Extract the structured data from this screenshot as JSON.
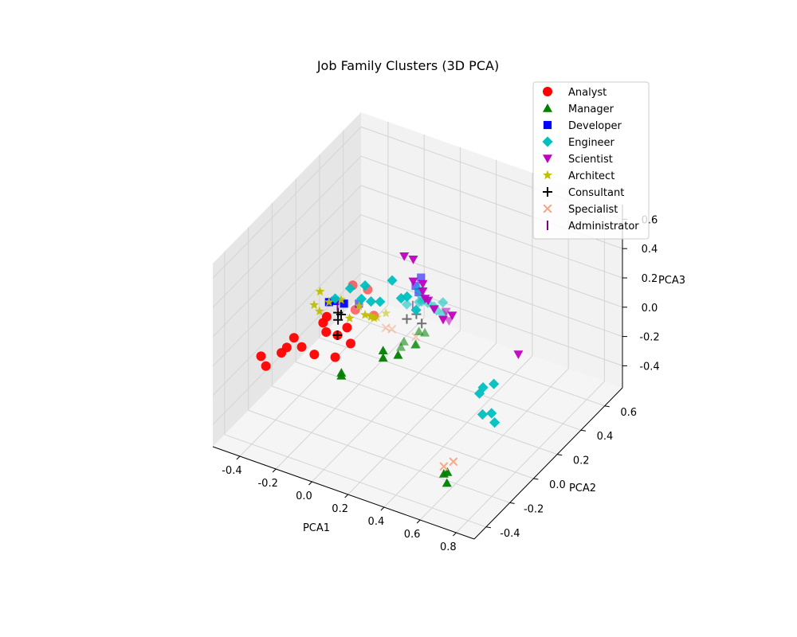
{
  "chart_data": {
    "type": "scatter3d",
    "title": "Job Family Clusters (3D PCA)",
    "xlabel": "PCA1",
    "ylabel": "PCA2",
    "zlabel": "PCA3",
    "xlim": [
      -0.55,
      0.9
    ],
    "ylim": [
      -0.5,
      0.75
    ],
    "zlim": [
      -0.55,
      0.7
    ],
    "xticks": [
      "-0.4",
      "-0.2",
      "0.0",
      "0.2",
      "0.4",
      "0.6",
      "0.8"
    ],
    "yticks": [
      "-0.4",
      "-0.2",
      "0.0",
      "0.2",
      "0.4",
      "0.6"
    ],
    "zticks": [
      "-0.4",
      "-0.2",
      "0.0",
      "0.2",
      "0.4",
      "0.6"
    ],
    "grid": true,
    "legend_position": "top-right",
    "series": [
      {
        "name": "Analyst",
        "color": "#ff0000",
        "marker": "circle",
        "points": [
          [
            -0.48,
            -0.2,
            -0.15
          ],
          [
            -0.42,
            -0.25,
            -0.15
          ],
          [
            -0.38,
            -0.18,
            -0.1
          ],
          [
            -0.35,
            -0.18,
            -0.05
          ],
          [
            -0.33,
            -0.15,
            0.0
          ],
          [
            -0.32,
            -0.1,
            -0.1
          ],
          [
            -0.3,
            0.05,
            -0.05
          ],
          [
            -0.28,
            0.05,
            0.0
          ],
          [
            -0.25,
            0.0,
            -0.05
          ],
          [
            -0.22,
            0.05,
            -0.1
          ],
          [
            -0.2,
            0.1,
            -0.08
          ],
          [
            -0.22,
            0.2,
            -0.05
          ],
          [
            -0.15,
            0.25,
            -0.1
          ],
          [
            -0.25,
            -0.1,
            -0.12
          ],
          [
            -0.2,
            0.0,
            -0.2
          ],
          [
            -0.18,
            0.1,
            -0.18
          ],
          [
            -0.3,
            0.3,
            0.0
          ],
          [
            -0.25,
            0.35,
            -0.05
          ]
        ]
      },
      {
        "name": "Manager",
        "color": "#008000",
        "marker": "triangle-up",
        "points": [
          [
            -0.1,
            -0.1,
            -0.2
          ],
          [
            -0.1,
            -0.1,
            -0.18
          ],
          [
            0.0,
            0.1,
            -0.2
          ],
          [
            0.0,
            0.1,
            -0.15
          ],
          [
            0.05,
            0.15,
            -0.2
          ],
          [
            0.05,
            0.2,
            -0.15
          ],
          [
            0.08,
            0.25,
            -0.2
          ],
          [
            0.1,
            0.25,
            -0.1
          ],
          [
            0.0,
            0.25,
            -0.25
          ],
          [
            0.05,
            0.3,
            -0.25
          ],
          [
            0.1,
            0.3,
            -0.15
          ],
          [
            0.6,
            -0.3,
            -0.4
          ],
          [
            0.62,
            -0.3,
            -0.38
          ],
          [
            0.65,
            -0.35,
            -0.4
          ]
        ]
      },
      {
        "name": "Developer",
        "color": "#0000ff",
        "marker": "square",
        "points": [
          [
            -0.3,
            0.1,
            0.05
          ],
          [
            -0.28,
            0.12,
            0.05
          ],
          [
            -0.25,
            0.15,
            0.02
          ],
          [
            -0.2,
            0.2,
            0.0
          ],
          [
            0.0,
            0.4,
            0.0
          ],
          [
            -0.02,
            0.45,
            0.05
          ],
          [
            -0.05,
            0.45,
            -0.02
          ]
        ]
      },
      {
        "name": "Engineer",
        "color": "#00bfbf",
        "marker": "diamond",
        "points": [
          [
            -0.1,
            0.1,
            0.25
          ],
          [
            -0.15,
            0.05,
            0.25
          ],
          [
            -0.2,
            0.0,
            0.2
          ],
          [
            -0.12,
            0.1,
            0.15
          ],
          [
            -0.1,
            0.15,
            0.1
          ],
          [
            -0.05,
            0.15,
            0.12
          ],
          [
            0.05,
            0.1,
            0.35
          ],
          [
            0.1,
            0.1,
            0.25
          ],
          [
            0.1,
            0.15,
            0.22
          ],
          [
            0.15,
            0.15,
            0.15
          ],
          [
            0.15,
            0.2,
            0.2
          ],
          [
            0.1,
            0.25,
            0.1
          ],
          [
            0.15,
            0.3,
            0.05
          ],
          [
            0.2,
            0.3,
            0.02
          ],
          [
            0.0,
            0.3,
            0.0
          ],
          [
            0.05,
            0.35,
            0.0
          ],
          [
            0.0,
            0.4,
            0.02
          ],
          [
            0.05,
            0.4,
            -0.05
          ],
          [
            0.1,
            0.4,
            -0.08
          ],
          [
            0.2,
            0.3,
            0.1
          ],
          [
            0.6,
            0.0,
            -0.1
          ],
          [
            0.62,
            0.0,
            -0.05
          ],
          [
            0.68,
            0.0,
            0.0
          ],
          [
            0.65,
            -0.05,
            -0.18
          ],
          [
            0.7,
            -0.05,
            -0.15
          ],
          [
            0.75,
            -0.1,
            -0.15
          ]
        ]
      },
      {
        "name": "Scientist",
        "color": "#bf00bf",
        "marker": "triangle-down",
        "points": [
          [
            0.15,
            0.05,
            0.6
          ],
          [
            0.2,
            0.05,
            0.6
          ],
          [
            0.2,
            0.05,
            0.45
          ],
          [
            0.22,
            0.1,
            0.4
          ],
          [
            0.22,
            0.1,
            0.35
          ],
          [
            0.25,
            0.1,
            0.3
          ],
          [
            0.2,
            0.15,
            0.25
          ],
          [
            0.25,
            0.15,
            0.2
          ],
          [
            0.3,
            0.15,
            0.15
          ],
          [
            0.3,
            0.2,
            0.1
          ],
          [
            0.35,
            0.15,
            0.2
          ],
          [
            0.25,
            0.25,
            0.1
          ],
          [
            0.75,
            0.1,
            0.15
          ]
        ]
      },
      {
        "name": "Architect",
        "color": "#bfbf00",
        "marker": "star",
        "points": [
          [
            -0.35,
            0.1,
            0.1
          ],
          [
            -0.35,
            0.05,
            0.05
          ],
          [
            -0.3,
            0.1,
            0.05
          ],
          [
            -0.32,
            0.05,
            0.02
          ],
          [
            -0.2,
            0.05,
            0.15
          ],
          [
            -0.1,
            0.05,
            0.15
          ],
          [
            -0.12,
            0.0,
            0.1
          ],
          [
            -0.1,
            0.1,
            0.05
          ],
          [
            -0.08,
            0.12,
            0.03
          ],
          [
            -0.05,
            0.1,
            0.05
          ],
          [
            -0.1,
            0.15,
            0.0
          ],
          [
            -0.1,
            0.2,
            -0.05
          ],
          [
            -0.05,
            0.2,
            0.0
          ]
        ]
      },
      {
        "name": "Consultant",
        "color": "#000000",
        "marker": "plus",
        "points": [
          [
            -0.2,
            0.05,
            0.05
          ],
          [
            -0.25,
            0.1,
            0.0
          ],
          [
            -0.25,
            0.1,
            -0.05
          ],
          [
            -0.22,
            0.05,
            -0.1
          ],
          [
            0.0,
            0.3,
            -0.1
          ],
          [
            0.02,
            0.35,
            -0.1
          ],
          [
            0.05,
            0.35,
            -0.15
          ]
        ]
      },
      {
        "name": "Specialist",
        "color": "#f4a582",
        "marker": "x",
        "points": [
          [
            -0.05,
            0.2,
            -0.1
          ],
          [
            -0.05,
            0.25,
            -0.15
          ],
          [
            0.05,
            0.3,
            -0.2
          ],
          [
            0.6,
            -0.3,
            -0.35
          ],
          [
            0.62,
            -0.25,
            -0.35
          ]
        ]
      },
      {
        "name": "Administrator",
        "color": "#800080",
        "marker": "vline",
        "points": [
          [
            -0.22,
            0.05,
            0.1
          ],
          [
            0.0,
            0.35,
            -0.05
          ]
        ]
      }
    ]
  }
}
